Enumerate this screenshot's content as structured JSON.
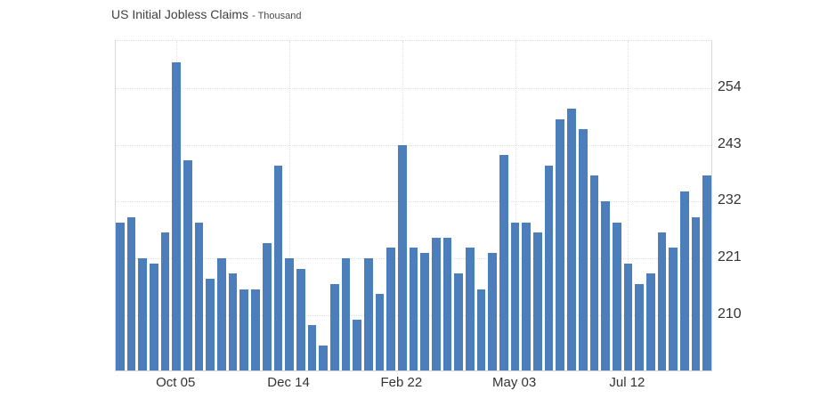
{
  "page": {
    "background": "#ffffff"
  },
  "header": {
    "title": "US Initial Jobless Claims",
    "unit_label": "- Thousand"
  },
  "chart_data": {
    "type": "bar",
    "title": "US Initial Jobless Claims",
    "unit_label": "- Thousand",
    "ylabel": "Thousand",
    "values": [
      228,
      229,
      221,
      220,
      226,
      259,
      240,
      228,
      217,
      221,
      218,
      215,
      215,
      224,
      239,
      221,
      219,
      208,
      204,
      216,
      221,
      209,
      221,
      214,
      223,
      243,
      223,
      222,
      225,
      225,
      218,
      223,
      215,
      222,
      241,
      228,
      228,
      226,
      239,
      248,
      250,
      246,
      237,
      232,
      228,
      220,
      216,
      218,
      226,
      223,
      234,
      229,
      237
    ],
    "x_tick_labels": [
      "Oct 05",
      "Dec 14",
      "Feb 22",
      "May 03",
      "Jul 12"
    ],
    "x_tick_indices": [
      5,
      15,
      25,
      35,
      45
    ],
    "y_ticks": [
      210,
      221,
      232,
      243,
      254
    ],
    "ylim": [
      199.2,
      263.2
    ],
    "legend": "none",
    "grid": {
      "horizontal": "dotted",
      "vertical": "dotted-at-x-ticks"
    },
    "colors": {
      "bar": "#4d7ebc",
      "grid": "#e0e0e0",
      "plot_border": "#d8d8d8",
      "title": "#404040",
      "unit": "#4a4a4a",
      "tick_label": "#333333"
    }
  }
}
